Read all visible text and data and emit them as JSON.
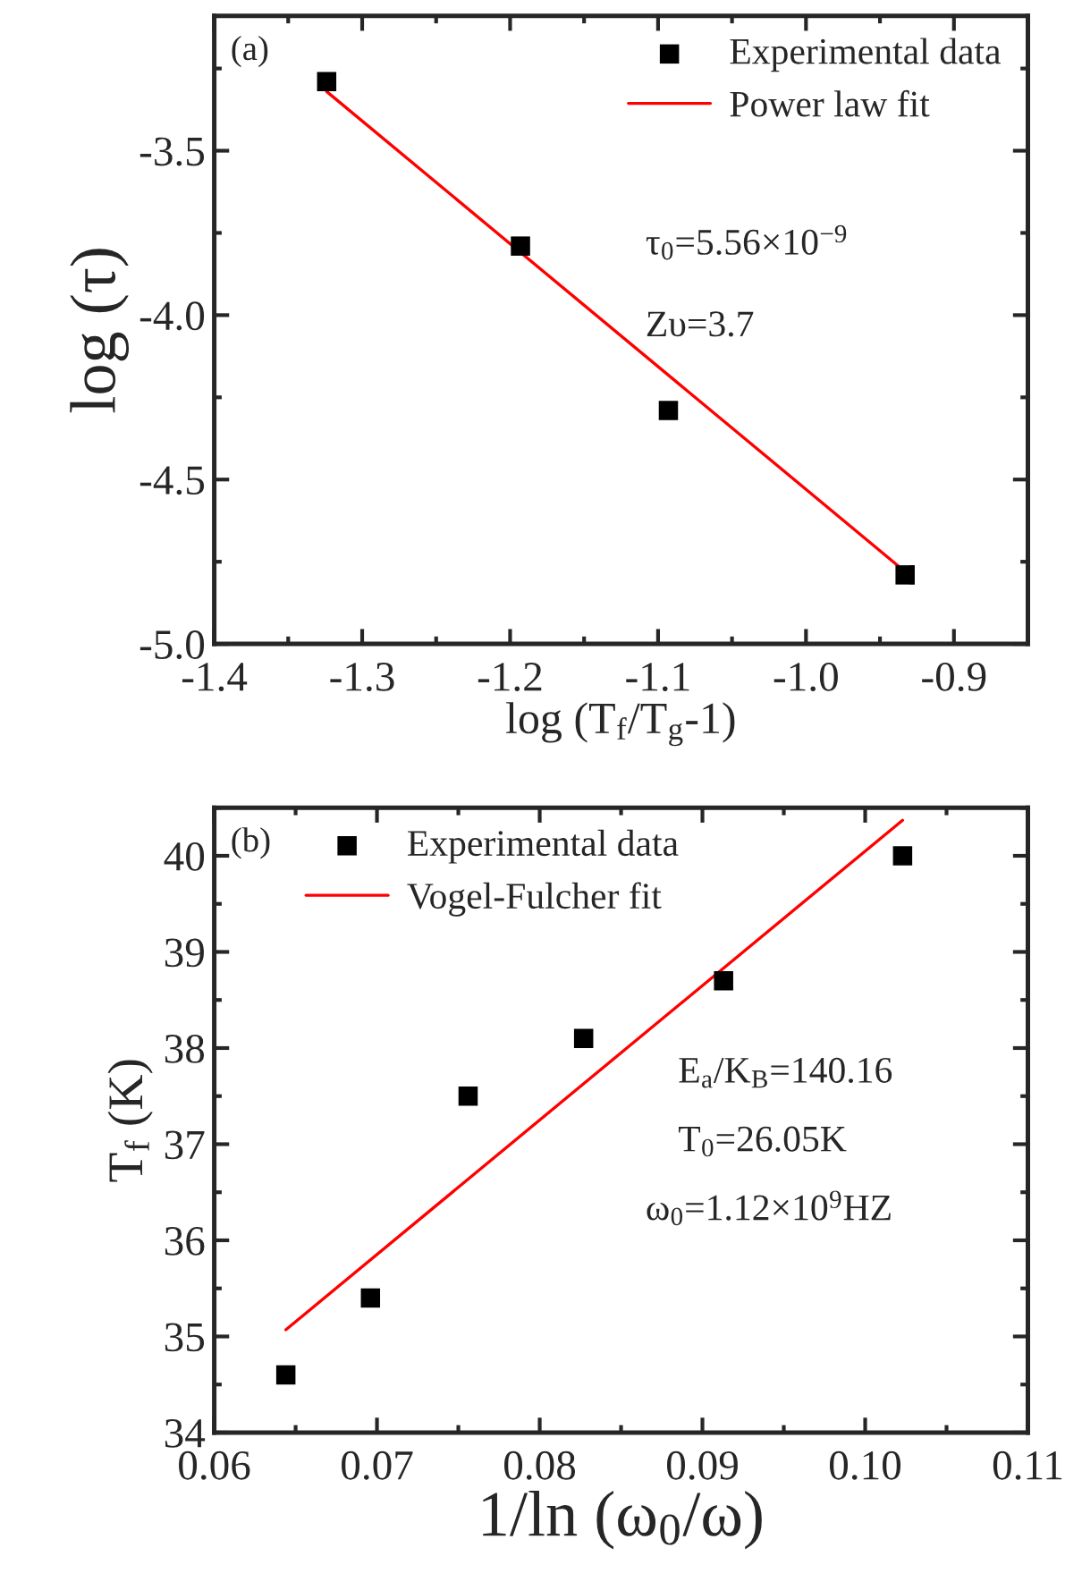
{
  "chart_data": [
    {
      "type": "scatter",
      "xlabel": "log (T$_{f}$/T$_{g}$-1)",
      "ylabel": "log (τ)",
      "xlim": [
        -1.4,
        -0.85
      ],
      "xticks": [
        -1.4,
        -1.3,
        -1.2,
        -1.1,
        {
          "value": -1.0,
          "label": "-1.0"
        },
        -0.9
      ],
      "ylim": [
        -5.0,
        -3.09
      ],
      "yticks": [
        {
          "value": -5.0,
          "label": "-5.0"
        },
        -4.5,
        {
          "value": -4.0,
          "label": "-4.0"
        },
        -3.5
      ],
      "legend": "top right",
      "grid": false,
      "annotations": [
        "(a)",
        "τ$_{0}$=5.56×10$^{−9}$",
        "Zυ=3.7"
      ],
      "series": [
        {
          "name": "Experimental data",
          "color": "#000000",
          "marker": "square",
          "x": [
            -1.324,
            -1.193,
            -1.093,
            -0.933
          ],
          "values": [
            -3.29,
            -3.79,
            -4.29,
            -4.79
          ]
        },
        {
          "name": "Power law fit",
          "type": "line",
          "color": "#ff0000",
          "marker": "none",
          "line_style": "solid",
          "x": [
            -1.324,
            -0.933
          ],
          "values": [
            -3.32,
            -4.78
          ]
        }
      ]
    },
    {
      "type": "scatter",
      "xlabel": "1/ln (ω$_{0}$/ω)",
      "ylabel": "T$_{f}$ (K)",
      "xlim": [
        0.06,
        0.11
      ],
      "xticks": [
        {
          "value": 0.06,
          "label": "0.06"
        },
        {
          "value": 0.07,
          "label": "0.07"
        },
        {
          "value": 0.08,
          "label": "0.08"
        },
        {
          "value": 0.09,
          "label": "0.09"
        },
        {
          "value": 0.1,
          "label": "0.10"
        },
        {
          "value": 0.11,
          "label": "0.11"
        }
      ],
      "ylim": [
        34,
        40.5
      ],
      "yticks": [
        34,
        35,
        36,
        37,
        38,
        39,
        40
      ],
      "legend": "top left",
      "grid": false,
      "annotations": [
        "(b)",
        "E$_{a}$/K$_{B}$=140.16",
        "T$_{0}$=26.05K",
        "ω$_{0}$=1.12×10$^{9}$HZ"
      ],
      "series": [
        {
          "name": "Experimental data",
          "color": "#000000",
          "marker": "square",
          "x": [
            0.0644,
            0.0696,
            0.0756,
            0.0827,
            0.0913,
            0.1023
          ],
          "values": [
            34.6,
            35.4,
            37.5,
            38.1,
            38.7,
            40.0
          ]
        },
        {
          "name": "Vogel-Fulcher fit",
          "type": "line",
          "color": "#ff0000",
          "marker": "none",
          "line_style": "solid",
          "x": [
            0.0644,
            0.1023
          ],
          "values": [
            35.07,
            40.37
          ]
        }
      ]
    }
  ]
}
